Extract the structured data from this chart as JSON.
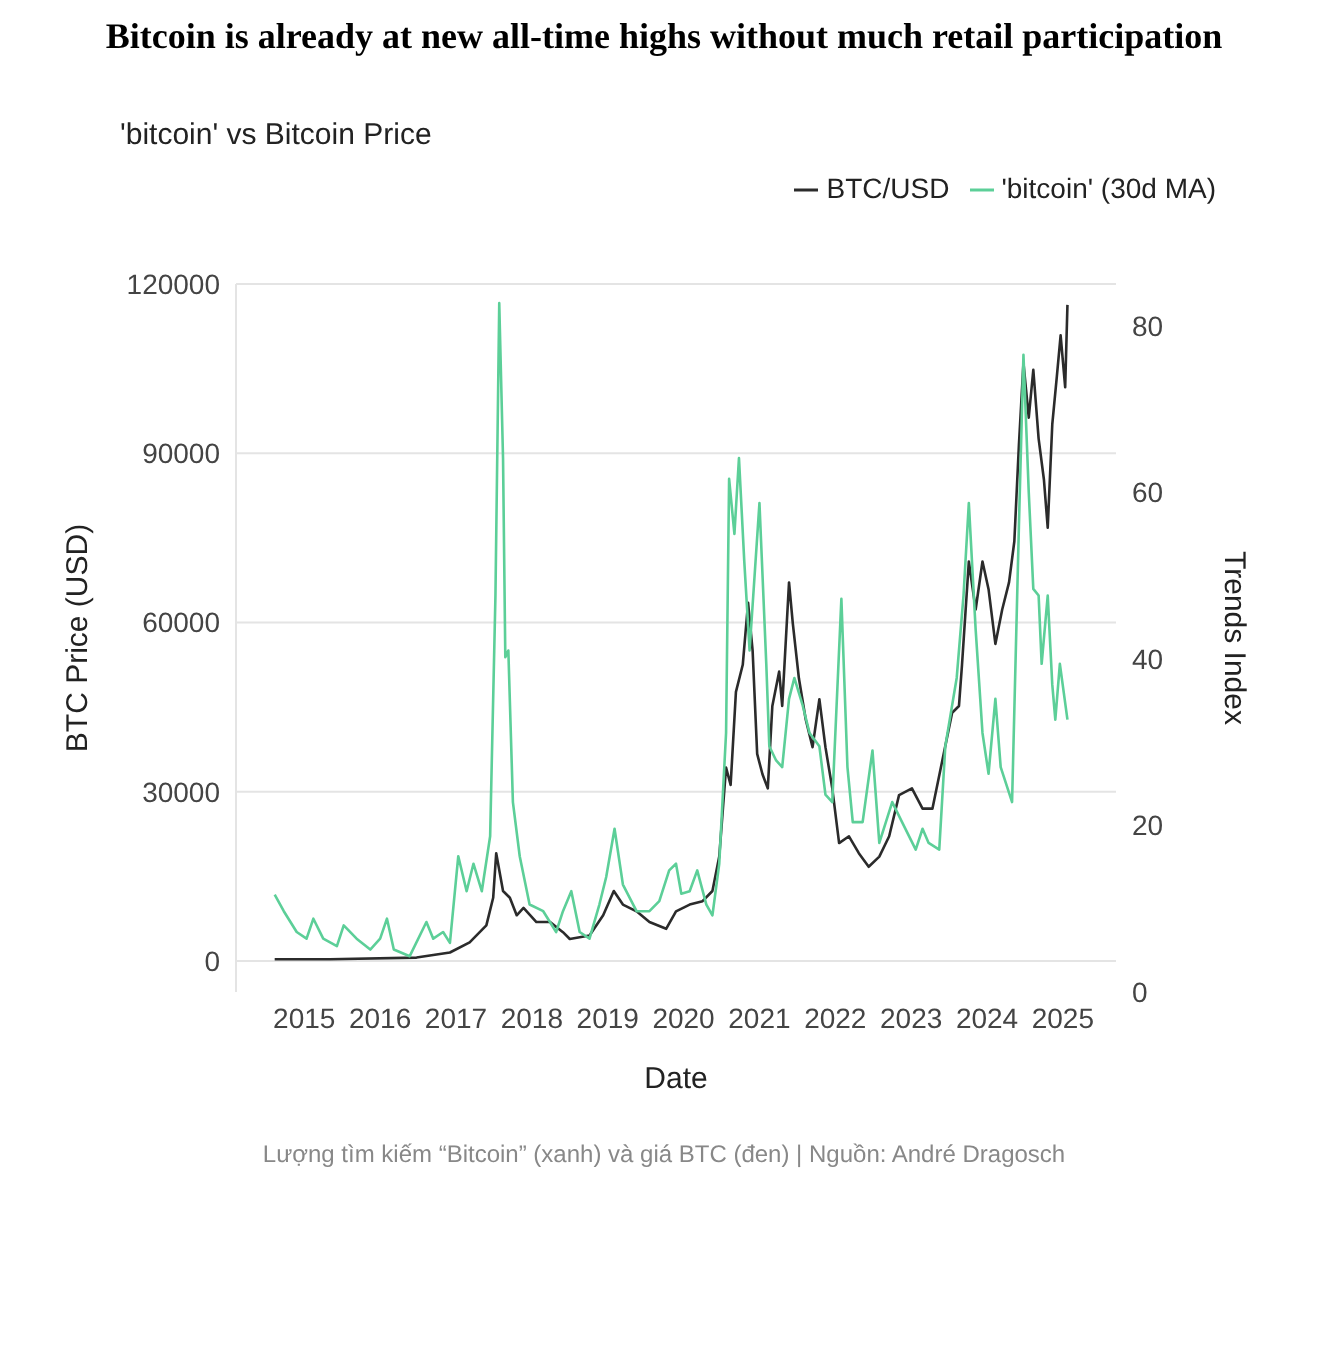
{
  "chart_data": {
    "type": "line",
    "title": "Bitcoin is already at new all-time highs without much retail participation",
    "subtitle": "'bitcoin' vs Bitcoin Price",
    "xlabel": "Date",
    "ylabel": "BTC Price (USD)",
    "y2label": "Trends Index",
    "xlim": [
      2014.6,
      2026.2
    ],
    "xticks": [
      {
        "value": 2015.5,
        "label": "2015"
      },
      {
        "value": 2016.5,
        "label": "2016"
      },
      {
        "value": 2017.5,
        "label": "2017"
      },
      {
        "value": 2018.5,
        "label": "2018"
      },
      {
        "value": 2019.5,
        "label": "2019"
      },
      {
        "value": 2020.5,
        "label": "2020"
      },
      {
        "value": 2021.5,
        "label": "2021"
      },
      {
        "value": 2022.5,
        "label": "2022"
      },
      {
        "value": 2023.5,
        "label": "2023"
      },
      {
        "value": 2024.5,
        "label": "2024"
      },
      {
        "value": 2025.5,
        "label": "2025"
      }
    ],
    "ylim": [
      -5500,
      120000
    ],
    "yticks": [
      0,
      30000,
      60000,
      90000,
      120000
    ],
    "y2lim": [
      0,
      85
    ],
    "y2ticks": [
      0,
      20,
      40,
      60,
      80
    ],
    "grid": "y",
    "legend": "top right",
    "annotations": [
      "Lượng tìm kiếm “Bitcoin” (xanh) và giá BTC (đen) | Nguồn: André Dragosch"
    ],
    "series": [
      {
        "name": "BTC/USD",
        "color": "#2b2b2b",
        "x": [
          2015.11,
          2015.84,
          2016.98,
          2017.42,
          2017.68,
          2017.9,
          2017.99,
          2018.03,
          2018.12,
          2018.21,
          2018.3,
          2018.39,
          2018.56,
          2018.74,
          2018.91,
          2019.0,
          2019.26,
          2019.44,
          2019.58,
          2019.7,
          2019.88,
          2020.05,
          2020.27,
          2020.4,
          2020.58,
          2020.75,
          2020.88,
          2020.97,
          2021.06,
          2021.12,
          2021.19,
          2021.28,
          2021.35,
          2021.41,
          2021.47,
          2021.54,
          2021.61,
          2021.67,
          2021.76,
          2021.8,
          2021.89,
          2021.94,
          2022.02,
          2022.11,
          2022.2,
          2022.29,
          2022.37,
          2022.46,
          2022.55,
          2022.68,
          2022.81,
          2022.94,
          2023.08,
          2023.21,
          2023.34,
          2023.51,
          2023.65,
          2023.78,
          2023.91,
          2024.04,
          2024.13,
          2024.17,
          2024.26,
          2024.35,
          2024.44,
          2024.52,
          2024.61,
          2024.7,
          2024.79,
          2024.86,
          2024.92,
          2024.98,
          2025.05,
          2025.11,
          2025.18,
          2025.25,
          2025.3,
          2025.36,
          2025.42,
          2025.47,
          2025.53,
          2025.56
        ],
        "values": [
          300,
          300,
          600,
          1500,
          3300,
          6300,
          11200,
          19100,
          12400,
          11200,
          8100,
          9400,
          6900,
          6900,
          5100,
          3900,
          4500,
          8100,
          12400,
          10000,
          8800,
          6900,
          5700,
          8800,
          10000,
          10600,
          12400,
          18500,
          34300,
          31200,
          47700,
          52500,
          63500,
          55000,
          36700,
          33100,
          30600,
          45200,
          51300,
          45200,
          67100,
          59800,
          50100,
          42800,
          37900,
          46400,
          37900,
          30600,
          20900,
          22100,
          19100,
          16700,
          18500,
          22100,
          29400,
          30600,
          27000,
          27000,
          35500,
          44000,
          45200,
          52500,
          70800,
          62300,
          70800,
          65900,
          56200,
          62300,
          67100,
          74400,
          91400,
          106000,
          96300,
          104800,
          92600,
          85300,
          76800,
          95100,
          103600,
          110900,
          101700,
          116300
        ]
      },
      {
        "name": "'bitcoin' (30d MA)",
        "color": "#5ccf98",
        "axis": "y2",
        "x": [
          2015.11,
          2015.23,
          2015.4,
          2015.53,
          2015.62,
          2015.75,
          2015.93,
          2016.02,
          2016.19,
          2016.37,
          2016.5,
          2016.59,
          2016.68,
          2016.89,
          2017.11,
          2017.2,
          2017.33,
          2017.42,
          2017.53,
          2017.64,
          2017.73,
          2017.84,
          2017.95,
          2018.02,
          2018.07,
          2018.12,
          2018.15,
          2018.19,
          2018.25,
          2018.34,
          2018.47,
          2018.65,
          2018.82,
          2018.91,
          2019.02,
          2019.13,
          2019.26,
          2019.39,
          2019.48,
          2019.59,
          2019.7,
          2019.88,
          2020.05,
          2020.18,
          2020.31,
          2020.4,
          2020.47,
          2020.58,
          2020.68,
          2020.8,
          2020.88,
          2020.97,
          2021.06,
          2021.1,
          2021.17,
          2021.23,
          2021.3,
          2021.37,
          2021.5,
          2021.59,
          2021.63,
          2021.72,
          2021.8,
          2021.89,
          2021.96,
          2022.07,
          2022.16,
          2022.29,
          2022.37,
          2022.46,
          2022.58,
          2022.66,
          2022.73,
          2022.86,
          2022.99,
          2023.08,
          2023.25,
          2023.38,
          2023.56,
          2023.65,
          2023.73,
          2023.87,
          2023.95,
          2024.1,
          2024.19,
          2024.26,
          2024.35,
          2024.44,
          2024.52,
          2024.61,
          2024.68,
          2024.83,
          2024.92,
          2024.98,
          2025.05,
          2025.11,
          2025.18,
          2025.22,
          2025.3,
          2025.36,
          2025.4,
          2025.46,
          2025.56
        ],
        "values": [
          11.7,
          9.7,
          7.2,
          6.4,
          8.8,
          6.4,
          5.5,
          8.0,
          6.4,
          5.1,
          6.4,
          8.8,
          5.1,
          4.3,
          8.4,
          6.4,
          7.2,
          5.9,
          16.3,
          12.1,
          15.4,
          12.1,
          18.7,
          47.6,
          82.7,
          64.1,
          40.2,
          41.0,
          22.8,
          16.3,
          10.5,
          9.7,
          7.2,
          9.7,
          12.1,
          7.2,
          6.4,
          10.5,
          13.8,
          19.6,
          12.9,
          9.7,
          9.7,
          10.9,
          14.6,
          15.4,
          11.8,
          12.1,
          14.6,
          10.5,
          9.2,
          15.4,
          31.1,
          61.6,
          55.0,
          64.1,
          51.7,
          41.0,
          58.7,
          39.4,
          29.5,
          27.8,
          27.0,
          35.2,
          37.7,
          34.4,
          31.1,
          29.5,
          23.7,
          22.8,
          47.2,
          27.0,
          20.4,
          20.4,
          29.0,
          17.9,
          22.8,
          20.4,
          17.1,
          19.6,
          17.9,
          17.1,
          29.5,
          37.7,
          47.6,
          58.7,
          43.5,
          31.1,
          26.2,
          35.2,
          27.0,
          22.8,
          55.9,
          76.5,
          60.0,
          48.4,
          47.6,
          39.4,
          47.6,
          36.9,
          32.7,
          39.4,
          32.7
        ]
      }
    ]
  }
}
